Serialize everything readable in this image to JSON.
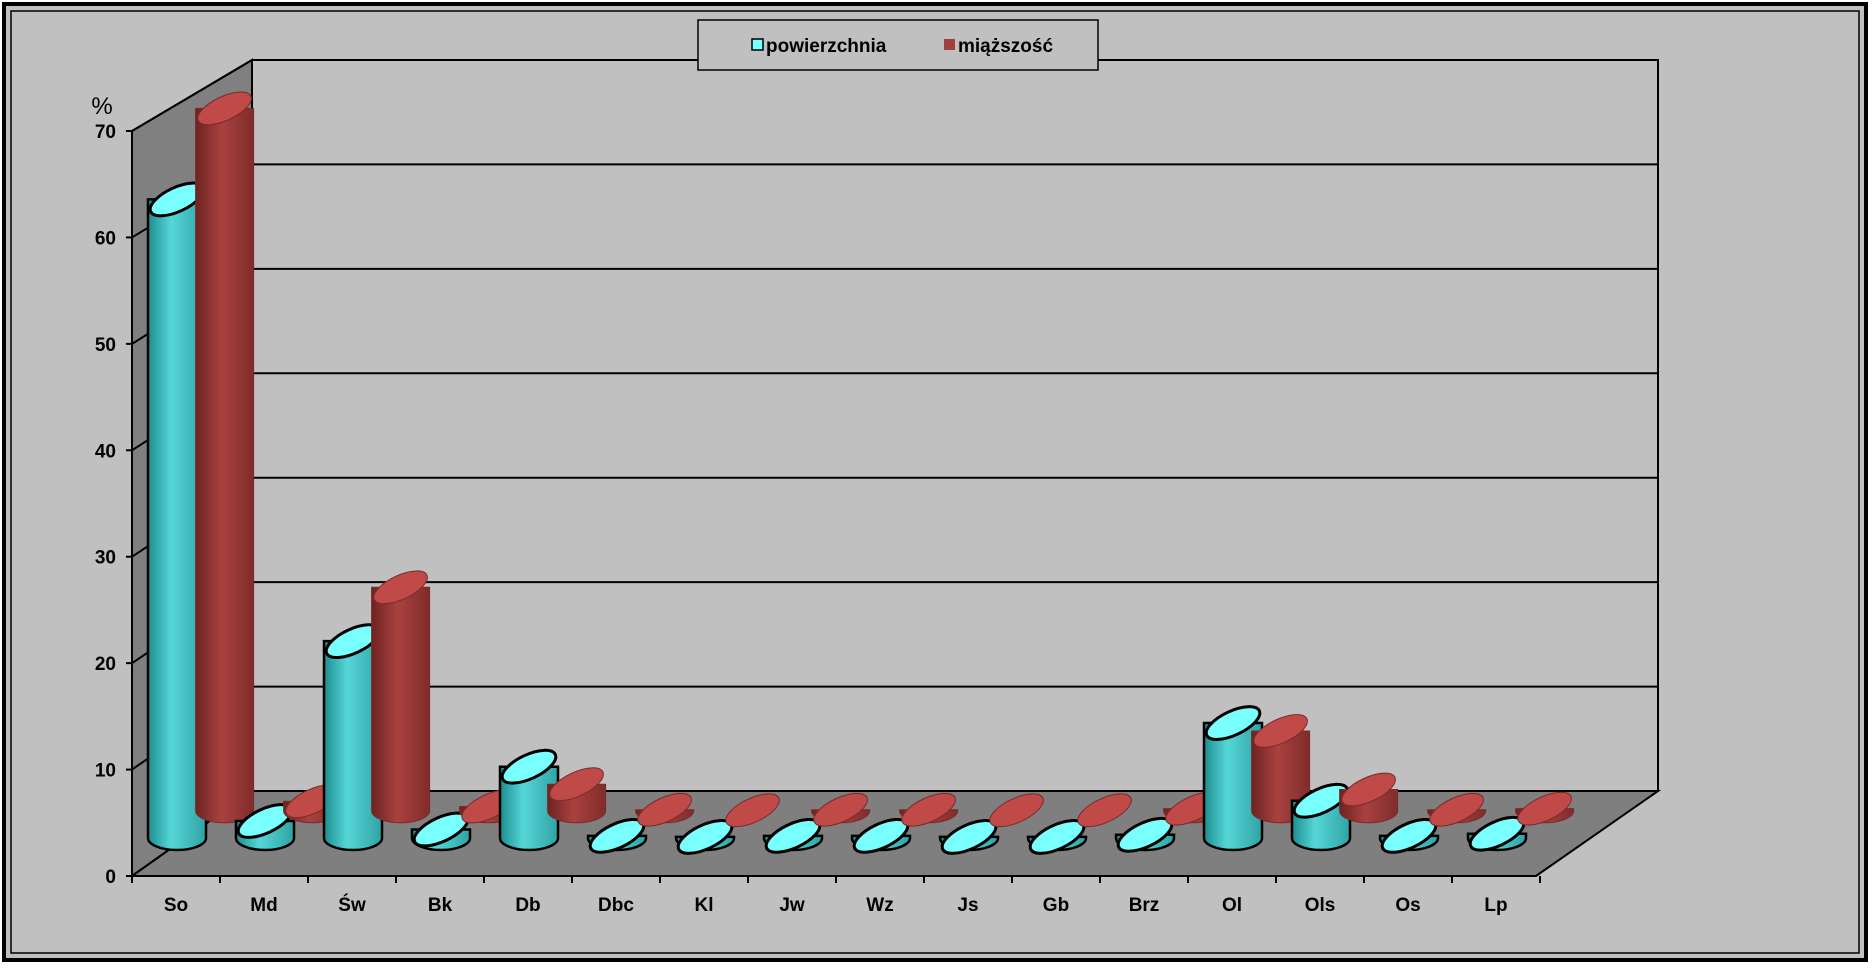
{
  "chart_data": {
    "type": "bar",
    "title": "",
    "xlabel": "",
    "ylabel": "%",
    "ylim": [
      0,
      70
    ],
    "yticks": [
      0,
      10,
      20,
      30,
      40,
      50,
      60,
      70
    ],
    "grid": true,
    "legend_position": "top-center",
    "categories": [
      "So",
      "Md",
      "Św",
      "Bk",
      "Db",
      "Dbc",
      "Kl",
      "Jw",
      "Wz",
      "Js",
      "Gb",
      "Brz",
      "Ol",
      "Ols",
      "Os",
      "Lp"
    ],
    "series": [
      {
        "name": "powierzchnia",
        "color": "#3ec3c3",
        "values": [
          60.0,
          1.6,
          18.5,
          0.8,
          6.7,
          0.2,
          0.1,
          0.2,
          0.2,
          0.1,
          0.1,
          0.3,
          10.8,
          3.5,
          0.2,
          0.4
        ]
      },
      {
        "name": "miąższość",
        "color": "#a0403f",
        "values": [
          66.0,
          0.9,
          21.0,
          0.4,
          2.5,
          0.1,
          0.05,
          0.1,
          0.1,
          0.05,
          0.05,
          0.2,
          7.5,
          2.0,
          0.1,
          0.2
        ]
      }
    ]
  }
}
